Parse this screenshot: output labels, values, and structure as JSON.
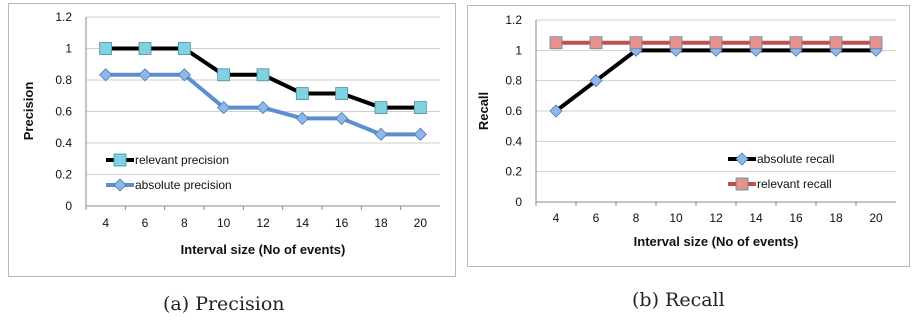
{
  "chart_data": [
    {
      "type": "line",
      "caption": "(a) Precision",
      "xlabel": "Interval size (No of events)",
      "ylabel": "Precision",
      "x": [
        4,
        6,
        8,
        10,
        12,
        14,
        16,
        18,
        20
      ],
      "ylim": [
        0,
        1.2
      ],
      "yticks": [
        "0",
        "0.2",
        "0.4",
        "0.6",
        "0.8",
        "1",
        "1.2"
      ],
      "grid": true,
      "legend_position": "lower-left",
      "series": [
        {
          "name": "relevant precision",
          "values": [
            1,
            1,
            1,
            0.833,
            0.833,
            0.714,
            0.714,
            0.625,
            0.625
          ],
          "line_color": "#000000",
          "marker": "square",
          "marker_color": "#7fd3e0"
        },
        {
          "name": "absolute precision",
          "values": [
            0.833,
            0.833,
            0.833,
            0.625,
            0.625,
            0.556,
            0.556,
            0.455,
            0.455
          ],
          "line_color": "#5b8fcf",
          "marker": "diamond",
          "marker_color": "#8fb8ea"
        }
      ]
    },
    {
      "type": "line",
      "caption": "(b) Recall",
      "xlabel": "Interval size (No of events)",
      "ylabel": "Recall",
      "x": [
        4,
        6,
        8,
        10,
        12,
        14,
        16,
        18,
        20
      ],
      "ylim": [
        0,
        1.2
      ],
      "yticks": [
        "0",
        "0.2",
        "0.4",
        "0.6",
        "0.8",
        "1",
        "1.2"
      ],
      "grid": true,
      "legend_position": "right",
      "series": [
        {
          "name": "absolute recall",
          "values": [
            0.6,
            0.8,
            1,
            1,
            1,
            1,
            1,
            1,
            1
          ],
          "line_color": "#000000",
          "marker": "diamond",
          "marker_color": "#8fb8ea"
        },
        {
          "name": "relevant recall",
          "values": [
            1.05,
            1.05,
            1.05,
            1.05,
            1.05,
            1.05,
            1.05,
            1.05,
            1.05
          ],
          "line_color": "#c0504d",
          "marker": "square",
          "marker_color": "#e8908d"
        }
      ]
    }
  ]
}
